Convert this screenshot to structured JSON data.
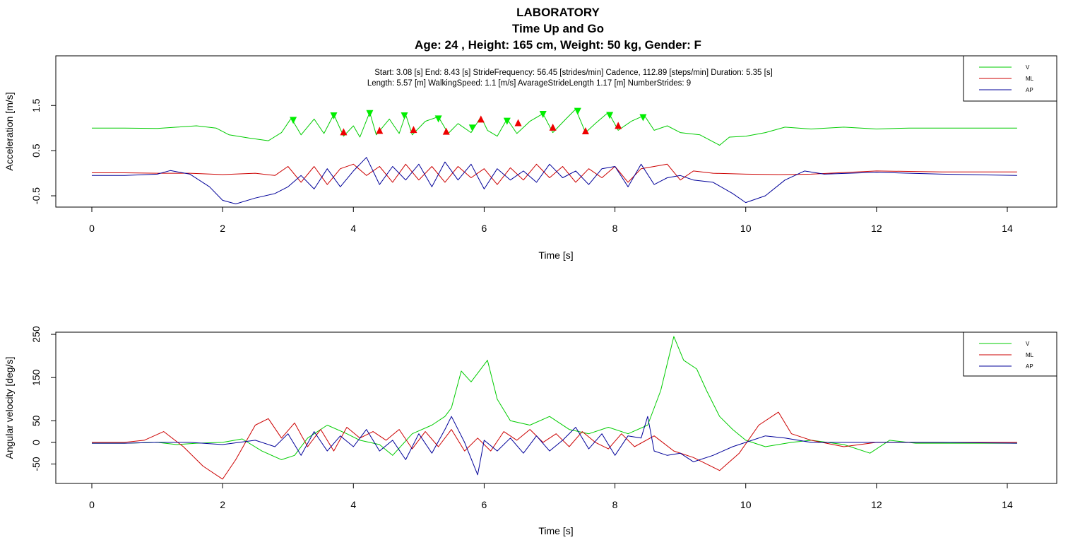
{
  "title_lines": [
    "LABORATORY",
    "Time Up and Go",
    "Age: 24 , Height:  165 cm, Weight:  50 kg, Gender:  F"
  ],
  "colors": {
    "V": "#00cc00",
    "ML": "#cc0000",
    "AP": "#000099",
    "markers_down": "#00ee00",
    "markers_up": "#ee0000"
  },
  "chart_data": [
    {
      "type": "line",
      "xlabel": "Time [s]",
      "ylabel": "Acceleration [m/s]",
      "xlim": [
        0,
        14.2
      ],
      "ylim": [
        -0.75,
        2.6
      ],
      "xticks": [
        "0",
        "2",
        "4",
        "6",
        "8",
        "10",
        "12",
        "14"
      ],
      "yticks": [
        "-0.5",
        "0.5",
        "1.5"
      ],
      "info_lines": [
        "Start:  3.08 [s]     End:  8.43 [s]     StrideFrequency:  56.45 [strides/min]    Cadence, 112.89 [steps/min]    Duration: 5.35 [s]",
        "Length:  5.57 [m]      WalkingSpeed: 1.1 [m/s]   AvarageStrideLength 1.17 [m]   NumberStrides: 9"
      ],
      "legend": {
        "position": "top-right",
        "entries": [
          "V",
          "ML",
          "AP"
        ]
      },
      "series": [
        {
          "name": "V",
          "x": [
            0,
            0.5,
            1.0,
            1.3,
            1.6,
            1.9,
            2.1,
            2.4,
            2.7,
            2.9,
            3.05,
            3.2,
            3.4,
            3.55,
            3.7,
            3.85,
            4.0,
            4.1,
            4.25,
            4.35,
            4.55,
            4.7,
            4.8,
            4.9,
            5.1,
            5.3,
            5.45,
            5.6,
            5.8,
            5.95,
            6.05,
            6.2,
            6.35,
            6.5,
            6.7,
            6.9,
            7.05,
            7.25,
            7.4,
            7.55,
            7.7,
            7.9,
            8.05,
            8.25,
            8.45,
            8.6,
            8.8,
            9.0,
            9.3,
            9.6,
            9.75,
            10.0,
            10.3,
            10.6,
            11.0,
            11.5,
            12.0,
            12.5,
            13.0,
            13.5,
            14.15
          ],
          "values": [
            1.0,
            1.0,
            0.99,
            1.02,
            1.05,
            1.0,
            0.85,
            0.78,
            0.72,
            0.9,
            1.22,
            0.85,
            1.2,
            0.88,
            1.3,
            0.82,
            1.05,
            0.8,
            1.35,
            0.85,
            1.2,
            0.88,
            1.3,
            0.85,
            1.15,
            1.25,
            0.88,
            1.1,
            0.9,
            1.25,
            0.95,
            0.82,
            1.2,
            0.88,
            1.15,
            1.32,
            0.9,
            1.2,
            1.42,
            0.9,
            1.1,
            1.35,
            0.95,
            1.15,
            1.28,
            0.95,
            1.05,
            0.9,
            0.85,
            0.62,
            0.8,
            0.82,
            0.9,
            1.02,
            0.98,
            1.02,
            0.98,
            1.0,
            1.0,
            1.0,
            1.0
          ]
        },
        {
          "name": "ML",
          "x": [
            0,
            0.5,
            1.0,
            1.5,
            2.0,
            2.5,
            2.8,
            3.0,
            3.2,
            3.4,
            3.6,
            3.8,
            4.0,
            4.2,
            4.4,
            4.6,
            4.8,
            5.0,
            5.2,
            5.4,
            5.6,
            5.8,
            6.0,
            6.2,
            6.4,
            6.6,
            6.8,
            7.0,
            7.2,
            7.4,
            7.6,
            7.8,
            8.0,
            8.2,
            8.4,
            8.6,
            8.8,
            9.0,
            9.2,
            9.5,
            10.0,
            10.5,
            11.0,
            12.0,
            13.0,
            14.15
          ],
          "values": [
            0.01,
            0.01,
            0.0,
            0.0,
            -0.03,
            0.0,
            -0.05,
            0.15,
            -0.2,
            0.15,
            -0.25,
            0.1,
            0.2,
            -0.05,
            0.15,
            -0.2,
            0.2,
            -0.15,
            0.15,
            -0.2,
            0.15,
            -0.1,
            0.1,
            -0.25,
            0.12,
            -0.15,
            0.2,
            -0.1,
            0.15,
            -0.2,
            0.1,
            -0.1,
            0.15,
            -0.2,
            0.1,
            0.15,
            0.2,
            -0.15,
            0.05,
            0.0,
            -0.02,
            -0.03,
            -0.02,
            0.05,
            0.03,
            0.03
          ]
        },
        {
          "name": "AP",
          "x": [
            0,
            0.5,
            1.0,
            1.2,
            1.5,
            1.8,
            2.0,
            2.2,
            2.5,
            2.8,
            3.0,
            3.2,
            3.4,
            3.6,
            3.8,
            4.0,
            4.2,
            4.4,
            4.6,
            4.8,
            5.0,
            5.2,
            5.4,
            5.6,
            5.8,
            6.0,
            6.2,
            6.4,
            6.6,
            6.8,
            7.0,
            7.2,
            7.4,
            7.6,
            7.8,
            8.0,
            8.2,
            8.4,
            8.6,
            8.8,
            9.0,
            9.2,
            9.5,
            9.8,
            10.0,
            10.3,
            10.6,
            10.9,
            11.2,
            12.0,
            13.0,
            14.15
          ],
          "values": [
            -0.05,
            -0.05,
            -0.02,
            0.06,
            -0.02,
            -0.3,
            -0.6,
            -0.68,
            -0.55,
            -0.45,
            -0.3,
            -0.05,
            -0.35,
            0.1,
            -0.3,
            0.05,
            0.35,
            -0.25,
            0.15,
            -0.15,
            0.2,
            -0.3,
            0.25,
            -0.15,
            0.2,
            -0.35,
            0.1,
            -0.15,
            0.05,
            -0.2,
            0.2,
            -0.1,
            0.05,
            -0.25,
            0.1,
            0.15,
            -0.3,
            0.2,
            -0.25,
            -0.1,
            -0.05,
            -0.15,
            -0.2,
            -0.45,
            -0.65,
            -0.5,
            -0.15,
            0.05,
            -0.02,
            0.02,
            -0.02,
            -0.05
          ]
        }
      ],
      "markers": {
        "down_triangles": {
          "x": [
            3.08,
            3.7,
            4.25,
            4.78,
            5.3,
            5.82,
            6.35,
            6.9,
            7.43,
            7.92,
            8.43
          ],
          "values": [
            1.17,
            1.27,
            1.32,
            1.27,
            1.2,
            1.0,
            1.15,
            1.3,
            1.37,
            1.28,
            1.23
          ]
        },
        "up_triangles": {
          "x": [
            3.85,
            4.4,
            4.92,
            5.42,
            5.95,
            6.52,
            7.05,
            7.55,
            8.05
          ],
          "values": [
            0.92,
            0.95,
            0.97,
            0.93,
            1.2,
            1.12,
            1.02,
            0.94,
            1.06
          ]
        }
      }
    },
    {
      "type": "line",
      "xlabel": "Time [s]",
      "ylabel": "Angular velocity [deg/s]",
      "xlim": [
        0,
        14.2
      ],
      "ylim": [
        -95,
        255
      ],
      "xticks": [
        "0",
        "2",
        "4",
        "6",
        "8",
        "10",
        "12",
        "14"
      ],
      "yticks": [
        "-50",
        "0",
        "50",
        "150",
        "250"
      ],
      "legend": {
        "position": "top-right",
        "entries": [
          "V",
          "ML",
          "AP"
        ]
      },
      "series": [
        {
          "name": "V",
          "x": [
            0,
            0.5,
            1.0,
            1.3,
            1.6,
            2.0,
            2.3,
            2.6,
            2.9,
            3.1,
            3.3,
            3.6,
            3.9,
            4.1,
            4.4,
            4.6,
            4.9,
            5.2,
            5.4,
            5.5,
            5.65,
            5.8,
            5.9,
            6.05,
            6.2,
            6.4,
            6.7,
            7.0,
            7.3,
            7.6,
            7.9,
            8.2,
            8.5,
            8.7,
            8.9,
            9.05,
            9.25,
            9.4,
            9.6,
            9.8,
            10.0,
            10.3,
            10.7,
            11.0,
            11.5,
            11.9,
            12.2,
            12.6,
            13.0,
            13.5,
            14.15
          ],
          "values": [
            -2,
            -2,
            0,
            -5,
            -2,
            0,
            8,
            -20,
            -40,
            -30,
            10,
            40,
            20,
            5,
            -5,
            -30,
            20,
            40,
            60,
            80,
            165,
            140,
            160,
            190,
            100,
            50,
            40,
            60,
            30,
            20,
            35,
            20,
            40,
            120,
            245,
            190,
            170,
            120,
            60,
            30,
            5,
            -10,
            0,
            5,
            -5,
            -25,
            5,
            -2,
            -2,
            -2,
            -2
          ]
        },
        {
          "name": "ML",
          "x": [
            0,
            0.5,
            0.8,
            1.1,
            1.4,
            1.7,
            2.0,
            2.2,
            2.5,
            2.7,
            2.9,
            3.1,
            3.3,
            3.5,
            3.7,
            3.9,
            4.1,
            4.3,
            4.5,
            4.7,
            4.9,
            5.1,
            5.3,
            5.5,
            5.7,
            5.9,
            6.1,
            6.3,
            6.5,
            6.7,
            6.9,
            7.1,
            7.3,
            7.5,
            7.7,
            7.9,
            8.1,
            8.3,
            8.6,
            8.9,
            9.2,
            9.6,
            9.9,
            10.2,
            10.5,
            10.7,
            11.0,
            11.5,
            12.0,
            13.0,
            14.15
          ],
          "values": [
            0,
            0,
            5,
            25,
            -10,
            -55,
            -85,
            -40,
            40,
            55,
            10,
            45,
            -10,
            30,
            -20,
            35,
            10,
            25,
            5,
            30,
            -15,
            25,
            -10,
            30,
            -20,
            10,
            -20,
            25,
            5,
            30,
            0,
            20,
            -10,
            25,
            0,
            -15,
            20,
            -10,
            15,
            -20,
            -35,
            -65,
            -25,
            40,
            70,
            20,
            5,
            -10,
            0,
            0,
            0
          ]
        },
        {
          "name": "AP",
          "x": [
            0,
            0.5,
            1.0,
            1.5,
            2.0,
            2.5,
            2.8,
            3.0,
            3.2,
            3.4,
            3.6,
            3.8,
            4.0,
            4.2,
            4.4,
            4.6,
            4.8,
            5.0,
            5.2,
            5.4,
            5.5,
            5.7,
            5.9,
            6.0,
            6.2,
            6.4,
            6.6,
            6.8,
            7.0,
            7.2,
            7.4,
            7.6,
            7.8,
            8.0,
            8.2,
            8.4,
            8.5,
            8.6,
            8.8,
            9.0,
            9.2,
            9.5,
            9.8,
            10.0,
            10.3,
            10.6,
            11.0,
            12.0,
            13.0,
            14.15
          ],
          "values": [
            -2,
            -2,
            0,
            0,
            -5,
            5,
            -10,
            20,
            -30,
            25,
            -20,
            15,
            -10,
            30,
            -20,
            5,
            -40,
            20,
            -25,
            30,
            60,
            0,
            -75,
            5,
            -20,
            10,
            -25,
            15,
            -20,
            5,
            35,
            -15,
            20,
            -30,
            15,
            10,
            60,
            -20,
            -30,
            -25,
            -45,
            -30,
            -10,
            0,
            15,
            10,
            0,
            0,
            0,
            -2
          ]
        }
      ]
    }
  ]
}
